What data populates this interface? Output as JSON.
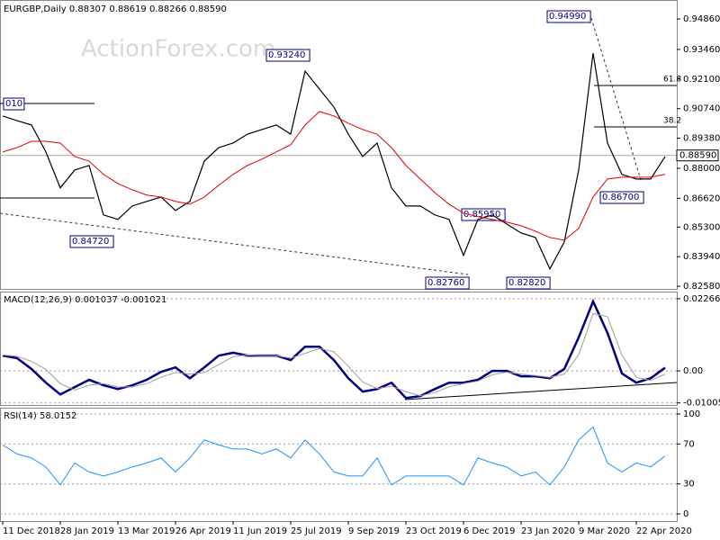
{
  "chart_data": [
    {
      "type": "line",
      "title": "EURGBP,Daily 0.88307 0.88619 0.88266 0.88590",
      "watermark": "ActionForex.com",
      "ylim": [
        0.8246,
        0.9569
      ],
      "yticks": [
        {
          "value": 0.9486,
          "label": "0.94860"
        },
        {
          "value": 0.9346,
          "label": "0.93460"
        },
        {
          "value": 0.921,
          "label": "0.92100"
        },
        {
          "value": 0.9074,
          "label": "0.90740"
        },
        {
          "value": 0.8938,
          "label": "0.89380"
        },
        {
          "value": 0.88,
          "label": "0.88000"
        },
        {
          "value": 0.8662,
          "label": "0.86620"
        },
        {
          "value": 0.853,
          "label": "0.85300"
        },
        {
          "value": 0.8394,
          "label": "0.83940"
        },
        {
          "value": 0.8258,
          "label": "0.82580"
        }
      ],
      "last_price": {
        "value": 0.8859,
        "label": "0.88590"
      },
      "annotations": [
        "0.94990",
        "0.93240",
        "0.84720",
        "0.85950",
        "0.82760",
        "0.82820",
        "0.86700",
        "010",
        "61.8",
        "38.2"
      ],
      "series": [
        {
          "color": "#000000",
          "values": [
            0.904,
            0.9019,
            0.8999,
            0.8875,
            0.871,
            0.8792,
            0.8813,
            0.8586,
            0.8565,
            0.8627,
            0.8648,
            0.8668,
            0.8606,
            0.8648,
            0.8833,
            0.8895,
            0.8916,
            0.8957,
            0.8978,
            0.8999,
            0.8957,
            0.9246,
            0.9164,
            0.9081,
            0.8957,
            0.8854,
            0.8916,
            0.871,
            0.8627,
            0.8627,
            0.8586,
            0.8565,
            0.84,
            0.8565,
            0.8586,
            0.8544,
            0.8503,
            0.8482,
            0.8338,
            0.8462,
            0.8792,
            0.9329,
            0.8916,
            0.8772,
            0.8751,
            0.8751,
            0.8854
          ]
        },
        {
          "color": "#e00000",
          "values": [
            0.8875,
            0.8895,
            0.8924,
            0.8924,
            0.8916,
            0.8854,
            0.8833,
            0.8772,
            0.873,
            0.8701,
            0.8677,
            0.8668,
            0.8648,
            0.8635,
            0.8668,
            0.8722,
            0.8772,
            0.8813,
            0.8842,
            0.8875,
            0.8908,
            0.8999,
            0.9061,
            0.904,
            0.9007,
            0.8978,
            0.8957,
            0.8895,
            0.8813,
            0.8751,
            0.8689,
            0.8635,
            0.8594,
            0.8578,
            0.8565,
            0.8553,
            0.8536,
            0.8511,
            0.8482,
            0.847,
            0.8524,
            0.8668,
            0.8751,
            0.8759,
            0.8759,
            0.8759,
            0.8772
          ]
        }
      ]
    },
    {
      "type": "line",
      "title": "MACD(12,26,9) 0.001037 -0.001021",
      "ylim": [
        -0.0107,
        0.0246
      ],
      "yticks": [
        0.022662,
        {
          "value": 0,
          "label": "0.00"
        },
        -0.010052
      ],
      "series": [
        {
          "color": "#00007f",
          "values": [
            0.0048,
            0.004,
            0.0006,
            -0.0037,
            -0.0074,
            -0.0051,
            -0.0028,
            -0.0045,
            -0.0057,
            -0.0045,
            -0.0028,
            -0.0003,
            0.0011,
            -0.0023,
            0.0011,
            0.0048,
            0.0057,
            0.0048,
            0.0048,
            0.0048,
            0.0034,
            0.0076,
            0.0076,
            0.0034,
            -0.0023,
            -0.0065,
            -0.0057,
            -0.0037,
            -0.0085,
            -0.0079,
            -0.0057,
            -0.0037,
            -0.0037,
            -0.0028,
            0,
            0,
            -0.0017,
            -0.0017,
            -0.0023,
            0.0006,
            0.0105,
            0.0218,
            0.0119,
            -0.0008,
            -0.0037,
            -0.0023,
            0.001
          ]
        },
        {
          "color": "#a0a0a0",
          "values": [
            0.005,
            0.0046,
            0.003,
            0.0005,
            -0.004,
            -0.006,
            -0.0045,
            -0.004,
            -0.005,
            -0.005,
            -0.004,
            -0.002,
            -0.0005,
            -0.001,
            -0.0005,
            0.002,
            0.0045,
            0.005,
            0.0048,
            0.0048,
            0.004,
            0.0055,
            0.007,
            0.006,
            0.0015,
            -0.0035,
            -0.0055,
            -0.0048,
            -0.0065,
            -0.0078,
            -0.0068,
            -0.005,
            -0.004,
            -0.0032,
            -0.0012,
            -0.0004,
            -0.001,
            -0.0015,
            -0.002,
            -0.001,
            0.005,
            0.018,
            0.017,
            0.005,
            -0.002,
            -0.003,
            -0.001
          ]
        }
      ]
    },
    {
      "type": "line",
      "title": "RSI(14) 58.0152",
      "ylim": [
        -7.2,
        105.4
      ],
      "yticks": [
        100,
        70,
        30,
        0
      ],
      "categories": [
        "11 Dec 2018",
        null,
        null,
        null,
        "28 Jan 2019",
        null,
        null,
        null,
        "13 Mar 2019",
        null,
        null,
        null,
        "26 Apr 2019",
        null,
        null,
        null,
        "11 Jun 2019",
        null,
        null,
        null,
        "25 Jul 2019",
        null,
        null,
        null,
        "9 Sep 2019",
        null,
        null,
        null,
        "23 Oct 2019",
        null,
        null,
        null,
        "6 Dec 2019",
        null,
        null,
        null,
        "23 Jan 2020",
        null,
        null,
        null,
        "9 Mar 2020",
        null,
        null,
        null,
        "22 Apr 2020",
        null,
        null
      ],
      "series": [
        {
          "color": "#1e90ff",
          "values": [
            69,
            60,
            56,
            47,
            29,
            51,
            42,
            38,
            42,
            47,
            51,
            56,
            42,
            56,
            74,
            69,
            65,
            65,
            60,
            65,
            56,
            74,
            60,
            42,
            38,
            38,
            56,
            29,
            38,
            38,
            38,
            38,
            29,
            56,
            51,
            47,
            38,
            42,
            29,
            47,
            74,
            87,
            51,
            42,
            51,
            47,
            58
          ]
        }
      ]
    }
  ]
}
